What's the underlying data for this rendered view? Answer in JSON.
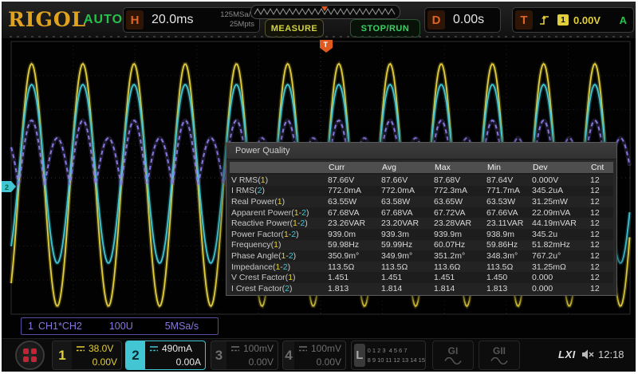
{
  "header": {
    "brand": "RIGOL",
    "mode": "AUTO",
    "horizontal": {
      "label": "H",
      "scale": "20.0ms",
      "rate": "125MSa/s",
      "depth": "25Mpts"
    },
    "measure_button": "MEASURE",
    "run_button": "STOP/RUN",
    "delay": {
      "label": "D",
      "value": "0.00s"
    },
    "trigger": {
      "label": "T",
      "source": "1",
      "level": "0.00V",
      "mode": "A"
    }
  },
  "scope": {
    "ch2_marker": "2",
    "trigger_marker": "T",
    "math": {
      "index": "1",
      "expr": "CH1*CH2",
      "scale": "100U",
      "rate": "5MSa/s"
    }
  },
  "popup": {
    "title": "Power Quality",
    "columns": [
      "Curr",
      "Avg",
      "Max",
      "Min",
      "Dev",
      "Cnt"
    ],
    "rows": [
      {
        "label": "V RMS",
        "ch": "1",
        "values": [
          "87.66V",
          "87.66V",
          "87.68V",
          "87.64V",
          "0.000V",
          "12"
        ]
      },
      {
        "label": "I RMS",
        "ch": "2",
        "values": [
          "772.0mA",
          "772.0mA",
          "772.3mA",
          "771.7mA",
          "345.2uA",
          "12"
        ]
      },
      {
        "label": "Real Power",
        "ch": "1",
        "values": [
          "63.55W",
          "63.58W",
          "63.65W",
          "63.53W",
          "31.25mW",
          "12"
        ]
      },
      {
        "label": "Apparent Power",
        "ch": "1-2",
        "values": [
          "67.68VA",
          "67.68VA",
          "67.72VA",
          "67.66VA",
          "22.09mVA",
          "12"
        ]
      },
      {
        "label": "Reactive Power",
        "ch": "1-2",
        "values": [
          "23.26VAR",
          "23.20VAR",
          "23.28VAR",
          "23.11VAR",
          "44.19mVAR",
          "12"
        ]
      },
      {
        "label": "Power Factor",
        "ch": "1-2",
        "values": [
          "939.0m",
          "939.3m",
          "939.9m",
          "938.9m",
          "345.2u",
          "12"
        ]
      },
      {
        "label": "Frequency",
        "ch": "1",
        "values": [
          "59.98Hz",
          "59.99Hz",
          "60.07Hz",
          "59.86Hz",
          "51.82mHz",
          "12"
        ]
      },
      {
        "label": "Phase Angle",
        "ch": "1-2",
        "values": [
          "350.9m°",
          "349.9m°",
          "351.2m°",
          "348.3m°",
          "767.2u°",
          "12"
        ]
      },
      {
        "label": "Impedance",
        "ch": "1-2",
        "values": [
          "113.5Ω",
          "113.5Ω",
          "113.6Ω",
          "113.5Ω",
          "31.25mΩ",
          "12"
        ]
      },
      {
        "label": "V Crest Factor",
        "ch": "1",
        "values": [
          "1.451",
          "1.451",
          "1.451",
          "1.450",
          "0.000",
          "12"
        ]
      },
      {
        "label": "I Crest Factor",
        "ch": "2",
        "values": [
          "1.813",
          "1.814",
          "1.814",
          "1.813",
          "0.000",
          "12"
        ]
      }
    ]
  },
  "footer": {
    "channels": [
      {
        "num": "1",
        "scale": "38.0V",
        "offset": "0.00V",
        "state": "active"
      },
      {
        "num": "2",
        "scale": "490mA",
        "offset": "0.00A",
        "state": "selected"
      },
      {
        "num": "3",
        "scale": "100mV",
        "offset": "0.00V",
        "state": "off"
      },
      {
        "num": "4",
        "scale": "100mV",
        "offset": "0.00V",
        "state": "off"
      }
    ],
    "logic": {
      "label": "L",
      "row1": "0 1 2 3  4 5 6 7",
      "row2": "8 9 10 11 12 13 14 15"
    },
    "gen1": "GI",
    "gen2": "GII",
    "lxi": "LXI",
    "time": "12:18"
  },
  "colors": {
    "ch1": "#e3cf3a",
    "ch2": "#42c6d4",
    "math": "#8678e0",
    "accent_orange": "#e0591e",
    "trig_yellow": "#e3cf3a",
    "off_gray": "#6e6e6e"
  }
}
